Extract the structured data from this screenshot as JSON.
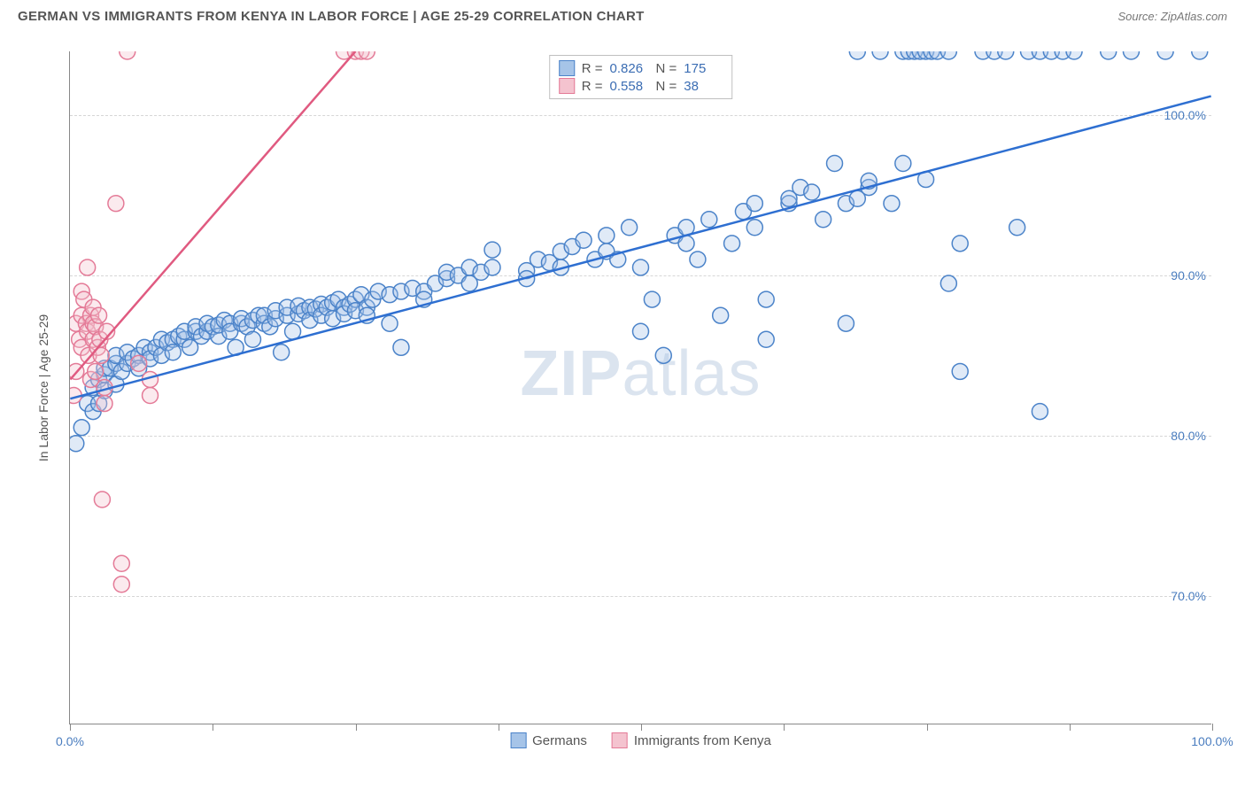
{
  "header": {
    "title": "GERMAN VS IMMIGRANTS FROM KENYA IN LABOR FORCE | AGE 25-29 CORRELATION CHART",
    "source": "Source: ZipAtlas.com"
  },
  "chart": {
    "type": "scatter",
    "yaxis_title": "In Labor Force | Age 25-29",
    "xlim": [
      0,
      100
    ],
    "ylim": [
      62,
      104
    ],
    "yticks": [
      70,
      80,
      90,
      100
    ],
    "ytick_labels": [
      "70.0%",
      "80.0%",
      "90.0%",
      "100.0%"
    ],
    "xticks": [
      0,
      12.5,
      25,
      37.5,
      50,
      62.5,
      75,
      87.5,
      100
    ],
    "xtick_labels_shown": {
      "0": "0.0%",
      "100": "100.0%"
    },
    "grid_color": "#d6d6d6",
    "axis_color": "#888888",
    "background_color": "#ffffff",
    "marker_radius": 9,
    "marker_stroke_width": 1.5,
    "watermark": "ZIPatlas",
    "series": [
      {
        "name": "Germans",
        "fill": "#a6c4e8",
        "stroke": "#4b83c9",
        "line_color": "#2e6fd1",
        "line_width": 2.5,
        "R": "0.826",
        "N": "175",
        "regression": {
          "x1": 0,
          "y1": 82.3,
          "x2": 100,
          "y2": 101.2
        },
        "points": [
          [
            0.5,
            79.5
          ],
          [
            1,
            80.5
          ],
          [
            1.5,
            82
          ],
          [
            2,
            83
          ],
          [
            2,
            81.5
          ],
          [
            2.5,
            83.5
          ],
          [
            2.5,
            82
          ],
          [
            3,
            83.8
          ],
          [
            3,
            82.8
          ],
          [
            3,
            84.2
          ],
          [
            3.5,
            84.2
          ],
          [
            4,
            83.2
          ],
          [
            4,
            84.5
          ],
          [
            4,
            85
          ],
          [
            4.5,
            84
          ],
          [
            5,
            84.5
          ],
          [
            5,
            85.2
          ],
          [
            5.5,
            84.8
          ],
          [
            6,
            85
          ],
          [
            6,
            84.2
          ],
          [
            6.5,
            85.5
          ],
          [
            7,
            85.2
          ],
          [
            7,
            84.8
          ],
          [
            7.5,
            85.5
          ],
          [
            8,
            86
          ],
          [
            8,
            85
          ],
          [
            8.5,
            85.8
          ],
          [
            9,
            86
          ],
          [
            9,
            85.2
          ],
          [
            9.5,
            86.2
          ],
          [
            10,
            86
          ],
          [
            10,
            86.5
          ],
          [
            10.5,
            85.5
          ],
          [
            11,
            86.5
          ],
          [
            11,
            86.8
          ],
          [
            11.5,
            86.2
          ],
          [
            12,
            86.5
          ],
          [
            12,
            87
          ],
          [
            12.5,
            86.8
          ],
          [
            13,
            86.2
          ],
          [
            13,
            86.9
          ],
          [
            13.5,
            87.2
          ],
          [
            14,
            87
          ],
          [
            14,
            86.5
          ],
          [
            14.5,
            85.5
          ],
          [
            15,
            87
          ],
          [
            15,
            87.3
          ],
          [
            15.5,
            86.8
          ],
          [
            16,
            87.2
          ],
          [
            16,
            86
          ],
          [
            16.5,
            87.5
          ],
          [
            17,
            87
          ],
          [
            17,
            87.5
          ],
          [
            17.5,
            86.8
          ],
          [
            18,
            87.3
          ],
          [
            18,
            87.8
          ],
          [
            18.5,
            85.2
          ],
          [
            19,
            87.5
          ],
          [
            19,
            88
          ],
          [
            19.5,
            86.5
          ],
          [
            20,
            87.6
          ],
          [
            20,
            88.1
          ],
          [
            20.5,
            87.8
          ],
          [
            21,
            88
          ],
          [
            21,
            87.2
          ],
          [
            21.5,
            87.9
          ],
          [
            22,
            88.2
          ],
          [
            22,
            87.5
          ],
          [
            22.5,
            88
          ],
          [
            23,
            87.3
          ],
          [
            23,
            88.3
          ],
          [
            23.5,
            88.5
          ],
          [
            24,
            88
          ],
          [
            24,
            87.6
          ],
          [
            24.5,
            88.2
          ],
          [
            25,
            88.5
          ],
          [
            25,
            87.8
          ],
          [
            25.5,
            88.8
          ],
          [
            26,
            88
          ],
          [
            26,
            87.5
          ],
          [
            26.5,
            88.5
          ],
          [
            27,
            89
          ],
          [
            28,
            87
          ],
          [
            28,
            88.8
          ],
          [
            29,
            89
          ],
          [
            29,
            85.5
          ],
          [
            30,
            89.2
          ],
          [
            31,
            89
          ],
          [
            31,
            88.5
          ],
          [
            32,
            89.5
          ],
          [
            33,
            89.8
          ],
          [
            33,
            90.2
          ],
          [
            34,
            90
          ],
          [
            35,
            89.5
          ],
          [
            35,
            90.5
          ],
          [
            36,
            90.2
          ],
          [
            37,
            90.5
          ],
          [
            37,
            91.6
          ],
          [
            40,
            90.3
          ],
          [
            40,
            89.8
          ],
          [
            41,
            91
          ],
          [
            42,
            90.8
          ],
          [
            43,
            90.5
          ],
          [
            43,
            91.5
          ],
          [
            44,
            91.8
          ],
          [
            45,
            92.2
          ],
          [
            46,
            91
          ],
          [
            47,
            92.5
          ],
          [
            47,
            91.5
          ],
          [
            48,
            91
          ],
          [
            49,
            93
          ],
          [
            50,
            90.5
          ],
          [
            50,
            86.5
          ],
          [
            51,
            88.5
          ],
          [
            52,
            85
          ],
          [
            53,
            92.5
          ],
          [
            54,
            93
          ],
          [
            54,
            92
          ],
          [
            55,
            91
          ],
          [
            56,
            93.5
          ],
          [
            57,
            87.5
          ],
          [
            58,
            92
          ],
          [
            59,
            94
          ],
          [
            60,
            94.5
          ],
          [
            60,
            93
          ],
          [
            61,
            86
          ],
          [
            61,
            88.5
          ],
          [
            63,
            94.5
          ],
          [
            63,
            94.8
          ],
          [
            64,
            95.5
          ],
          [
            65,
            95.2
          ],
          [
            66,
            93.5
          ],
          [
            67,
            97
          ],
          [
            68,
            94.5
          ],
          [
            68,
            87
          ],
          [
            69,
            94.8
          ],
          [
            69,
            104
          ],
          [
            70,
            95.5
          ],
          [
            70,
            95.9
          ],
          [
            71,
            104
          ],
          [
            72,
            94.5
          ],
          [
            73,
            97
          ],
          [
            73,
            104
          ],
          [
            73.5,
            104
          ],
          [
            74,
            104
          ],
          [
            74.5,
            104
          ],
          [
            75,
            104
          ],
          [
            75,
            96
          ],
          [
            75.5,
            104
          ],
          [
            76,
            104
          ],
          [
            77,
            104
          ],
          [
            77,
            89.5
          ],
          [
            78,
            92
          ],
          [
            78,
            84
          ],
          [
            80,
            104
          ],
          [
            81,
            104
          ],
          [
            82,
            104
          ],
          [
            83,
            93
          ],
          [
            84,
            104
          ],
          [
            85,
            104
          ],
          [
            85,
            81.5
          ],
          [
            86,
            104
          ],
          [
            87,
            104
          ],
          [
            88,
            104
          ],
          [
            91,
            104
          ],
          [
            93,
            104
          ],
          [
            96,
            104
          ],
          [
            99,
            104
          ]
        ]
      },
      {
        "name": "Immigrants from Kenya",
        "fill": "#f4c3cf",
        "stroke": "#e47a97",
        "line_color": "#e05a80",
        "line_width": 2.5,
        "R": "0.558",
        "N": "38",
        "regression": {
          "x1": 0,
          "y1": 83.5,
          "x2": 25,
          "y2": 104
        },
        "points": [
          [
            0.3,
            82.5
          ],
          [
            0.5,
            84
          ],
          [
            0.5,
            87
          ],
          [
            0.8,
            86
          ],
          [
            1,
            85.5
          ],
          [
            1,
            87.5
          ],
          [
            1,
            89
          ],
          [
            1.2,
            88.5
          ],
          [
            1.4,
            87
          ],
          [
            1.5,
            90.5
          ],
          [
            1.5,
            86.5
          ],
          [
            1.6,
            85
          ],
          [
            1.8,
            87.5
          ],
          [
            1.8,
            83.5
          ],
          [
            2,
            86
          ],
          [
            2,
            88
          ],
          [
            2,
            87
          ],
          [
            2.2,
            86.8
          ],
          [
            2.2,
            84
          ],
          [
            2.4,
            85.5
          ],
          [
            2.5,
            87.5
          ],
          [
            2.6,
            86
          ],
          [
            2.7,
            85
          ],
          [
            2.8,
            76
          ],
          [
            3,
            83
          ],
          [
            3,
            82
          ],
          [
            3.2,
            86.5
          ],
          [
            4,
            94.5
          ],
          [
            4.5,
            72
          ],
          [
            4.5,
            70.7
          ],
          [
            5,
            104
          ],
          [
            6,
            84.5
          ],
          [
            7,
            82.5
          ],
          [
            7,
            83.5
          ],
          [
            24,
            104
          ],
          [
            25,
            104
          ],
          [
            25.5,
            104
          ],
          [
            26,
            104
          ]
        ]
      }
    ],
    "legend_bottom": [
      {
        "swatch_fill": "#a6c4e8",
        "swatch_stroke": "#4b83c9",
        "label": "Germans"
      },
      {
        "swatch_fill": "#f4c3cf",
        "swatch_stroke": "#e47a97",
        "label": "Immigrants from Kenya"
      }
    ]
  }
}
